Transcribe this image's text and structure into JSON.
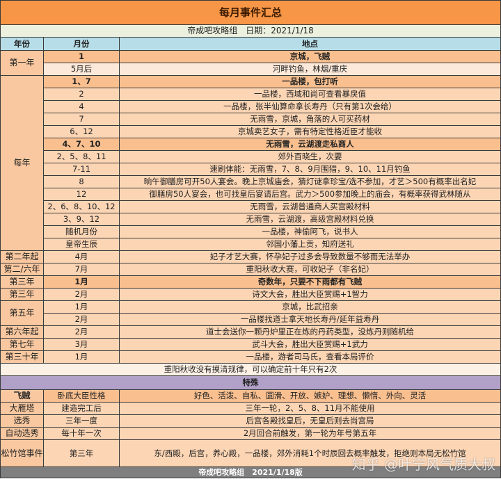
{
  "title": "每月事件汇总",
  "subtitle": "帝成吧攻略组　日期：2021/1/18",
  "headers": {
    "year": "年份",
    "month": "月份",
    "place": "地点"
  },
  "groups": [
    {
      "year": "第一年",
      "rows": [
        {
          "month": "1",
          "place": "京城，飞贼",
          "bold": true
        },
        {
          "month": "5月后",
          "place": "河畔钓鱼，林烟/重庆",
          "light": true
        }
      ]
    },
    {
      "year": "每年",
      "rows": [
        {
          "month": "1、7",
          "place": "一品楼，包打听",
          "bold": true
        },
        {
          "month": "2",
          "place": "一品楼，西域和尚可查看暴戾值"
        },
        {
          "month": "4",
          "place": "一品楼，张半仙算命拿长寿丹（只有第1次会给）"
        },
        {
          "month": "7",
          "place": "无雨雪，京城，角落的人可买药材"
        },
        {
          "month": "6、12",
          "place": "京城卖艺女子，需有特定性格近臣才能收"
        },
        {
          "month": "4、7、10",
          "place": "无雨雪，云湖渡走私商人",
          "bold": true
        },
        {
          "month": "2、5、8、11",
          "place": "郊外百晓生，次要"
        },
        {
          "month": "7-11",
          "place": "速刷体能：无雨雪，7、8、9月围猎，9、10、11月钓鱼"
        },
        {
          "month": "8",
          "place": "晌午御膳房可开50人宴会。晚上京城庙会，猜灯谜拿珍宝/选不参加，才艺＞500有概率出名妃"
        },
        {
          "month": "12",
          "place": "御膳房50人宴会，也可找皇后宴请后宫。武力＞500参加晚上的庙会，有概率获得武林随从"
        },
        {
          "month": "2、6、8、10、12",
          "place": "无雨雪，云湖普通商人买宫殿材料"
        },
        {
          "month": "3、9、12",
          "place": "无雨雪，云湖渡，高级宫殿材料兑换"
        },
        {
          "month": "随机月份",
          "place": "一品楼，神偷阿飞，说书人"
        },
        {
          "month": "皇帝生辰",
          "place": "邻国小藩上贡，知府送礼"
        }
      ]
    },
    {
      "year": "第二年起",
      "rows": [
        {
          "month": "4月",
          "place": "妃子才艺大赛，怀孕妃子过多会导致数量不够而无法举办"
        }
      ]
    },
    {
      "year": "第二/六年",
      "rows": [
        {
          "month": "7月",
          "place": "重阳秋收大赛，可收妃子（非名妃）"
        }
      ]
    },
    {
      "year": "第三年",
      "rows": [
        {
          "month": "1月",
          "place": "奇数年，只要不下雨都有飞贼",
          "bold": true
        }
      ]
    },
    {
      "year": "第三年",
      "rows": [
        {
          "month": "2月",
          "place": "诗文大会，胜出大臣赏赐+1智力"
        }
      ]
    },
    {
      "year": "第五年",
      "rows": [
        {
          "month": "1月",
          "place": "京城，比武招亲"
        },
        {
          "month": "2月",
          "place": "一品楼找道士拿天地长寿丹/延年益寿丹"
        }
      ]
    },
    {
      "year": "第六年起",
      "rows": [
        {
          "month": "2月",
          "place": "道士会送你一颗丹炉里正在炼的丹药类型，没炼丹则随机给"
        }
      ]
    },
    {
      "year": "第七年",
      "rows": [
        {
          "month": "3月",
          "place": "武斗大会，胜出大臣赏赐+1武力"
        }
      ]
    },
    {
      "year": "第三十年",
      "rows": [
        {
          "month": "1月",
          "place": "一品楼，游者司马氏，查看本局评价"
        }
      ]
    }
  ],
  "note": "重阳秋收没有摸清规律，可以确定前十年只有2次",
  "special_title": "特殊",
  "special": [
    {
      "year": "飞贼",
      "month": "卧底大臣性格",
      "place": "好色、活泼、自私、圆滑、开放、嫉妒、理想、懒惰、外向、灵活",
      "bold": true
    },
    {
      "year": "大雁塔",
      "month": "建造完工后",
      "place": "三年一轮，2、5、8、11月不能使用"
    },
    {
      "year": "选秀",
      "month": "三年一度",
      "place": "后宫各殿找皇后，无皇后则去尚宫局"
    },
    {
      "year": "自动选秀",
      "month": "每十年一次",
      "place": "2月回合前触发，第一轮为年号第五年"
    },
    {
      "year": "松竹馆事件",
      "month": "第三年",
      "place": "东/西殿，后宫，养心殿，一品楼，郊外消耗1个时辰回去概率触发，拒绝则本局无松竹馆",
      "tall": true
    }
  ],
  "footer": "帝成吧攻略组　2021/1/18版",
  "watermark": "知乎 @叶宁风气质大叔"
}
